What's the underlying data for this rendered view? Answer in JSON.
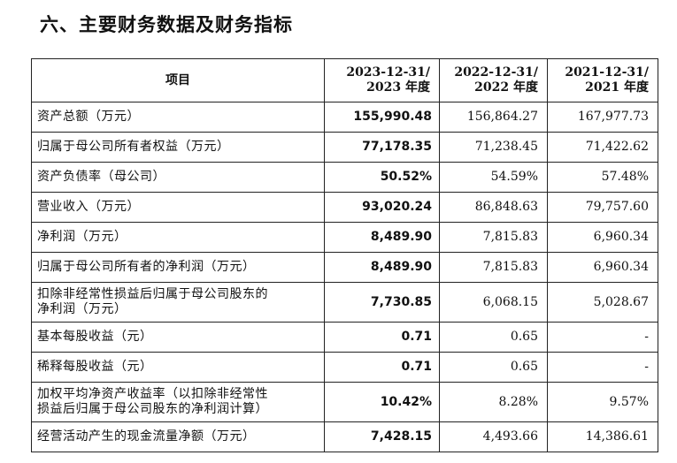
{
  "heading": "六、主要财务数据及财务指标",
  "table": {
    "headers": {
      "item": "项目",
      "y2023_line1": "2023-12-31/",
      "y2023_line2": "2023 年度",
      "y2022_line1": "2022-12-31/",
      "y2022_line2": "2022 年度",
      "y2021_line1": "2021-12-31/",
      "y2021_line2": "2021 年度"
    },
    "rows": [
      {
        "label": "资产总额（万元）",
        "v2023": "155,990.48",
        "v2022": "156,864.27",
        "v2021": "167,977.73"
      },
      {
        "label": "归属于母公司所有者权益（万元）",
        "v2023": "77,178.35",
        "v2022": "71,238.45",
        "v2021": "71,422.62"
      },
      {
        "label": "资产负债率（母公司）",
        "v2023": "50.52%",
        "v2022": "54.59%",
        "v2021": "57.48%"
      },
      {
        "label": "营业收入（万元）",
        "v2023": "93,020.24",
        "v2022": "86,848.63",
        "v2021": "79,757.60"
      },
      {
        "label": "净利润（万元）",
        "v2023": "8,489.90",
        "v2022": "7,815.83",
        "v2021": "6,960.34"
      },
      {
        "label": "归属于母公司所有者的净利润（万元）",
        "v2023": "8,489.90",
        "v2022": "7,815.83",
        "v2021": "6,960.34"
      },
      {
        "label_line1": "扣除非经常性损益后归属于母公司股东的",
        "label_line2": "净利润（万元）",
        "v2023": "7,730.85",
        "v2022": "6,068.15",
        "v2021": "5,028.67"
      },
      {
        "label": "基本每股收益（元）",
        "v2023": "0.71",
        "v2022": "0.65",
        "v2021": "-"
      },
      {
        "label": "稀释每股收益（元）",
        "v2023": "0.71",
        "v2022": "0.65",
        "v2021": "-"
      },
      {
        "label_line1": "加权平均净资产收益率（以扣除非经常性",
        "label_line2": "损益后归属于母公司股东的净利润计算）",
        "v2023": "10.42%",
        "v2022": "8.28%",
        "v2021": "9.57%"
      },
      {
        "label": "经营活动产生的现金流量净额（万元）",
        "v2023": "7,428.15",
        "v2022": "4,493.66",
        "v2021": "14,386.61"
      }
    ]
  }
}
